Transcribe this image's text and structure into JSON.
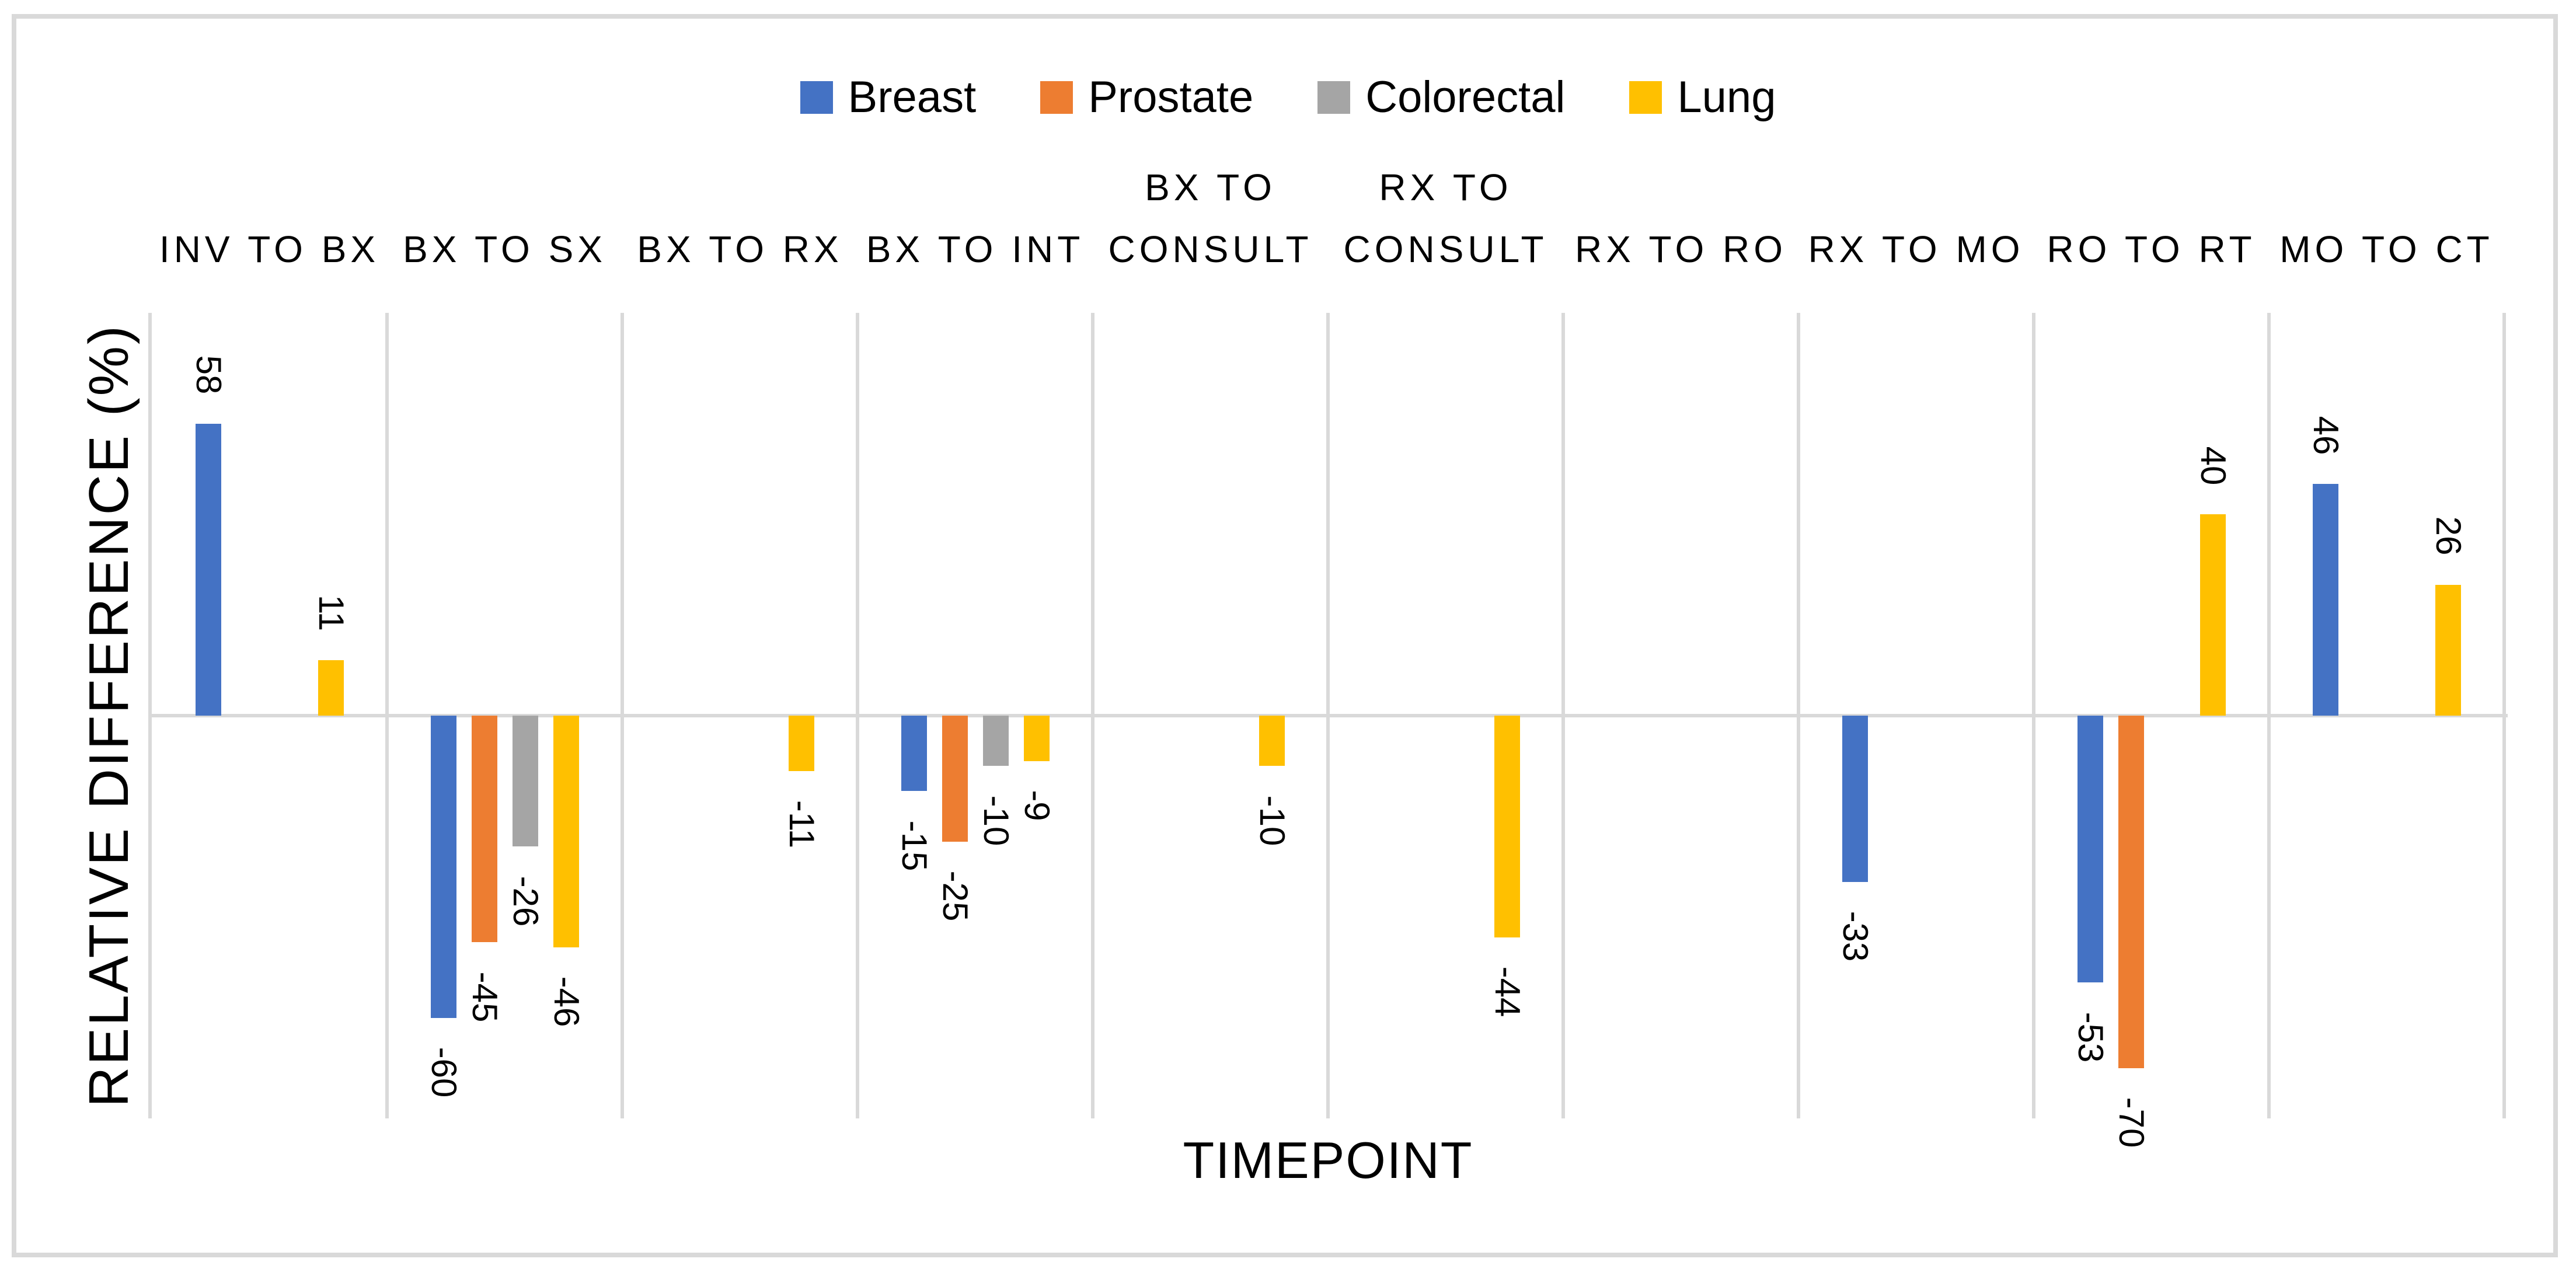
{
  "figure": {
    "background": "#FFFFFF",
    "frame_border_color": "#D9D9D9",
    "axis_line_color": "#D9D9D9",
    "text_color": "#000000"
  },
  "chart_data": {
    "type": "bar",
    "title": "",
    "xlabel": "TIMEPOINT",
    "ylabel": "RELATIVE DIFFERENCE (%)",
    "ylim": [
      -80,
      80
    ],
    "grid": "vertical category separator lines only; no horizontal gridlines; no y tick labels",
    "legend_position": "top-center",
    "value_labels": "shown at end of each bar, rotated 90 degrees",
    "categories": [
      "INV TO BX",
      "BX TO SX",
      "BX TO RX",
      "BX TO INT",
      "BX TO CONSULT",
      "RX TO CONSULT",
      "RX TO RO",
      "RX TO MO",
      "RO TO RT",
      "MO TO CT"
    ],
    "category_label_lines": [
      [
        "INV TO BX"
      ],
      [
        "BX TO SX"
      ],
      [
        "BX TO RX"
      ],
      [
        "BX TO INT"
      ],
      [
        "BX TO",
        "CONSULT"
      ],
      [
        "RX TO",
        "CONSULT"
      ],
      [
        "RX TO RO"
      ],
      [
        "RX TO MO"
      ],
      [
        "RO TO RT"
      ],
      [
        "MO TO CT"
      ]
    ],
    "series": [
      {
        "name": "Breast",
        "color": "#4472C4",
        "values": [
          58,
          -60,
          null,
          -15,
          null,
          null,
          null,
          -33,
          -53,
          46
        ]
      },
      {
        "name": "Prostate",
        "color": "#ED7D31",
        "values": [
          null,
          -45,
          null,
          -25,
          null,
          null,
          null,
          null,
          -70,
          null
        ]
      },
      {
        "name": "Colorectal",
        "color": "#A5A5A5",
        "values": [
          null,
          -26,
          null,
          -10,
          null,
          null,
          null,
          null,
          null,
          null
        ]
      },
      {
        "name": "Lung",
        "color": "#FFC000",
        "values": [
          11,
          -46,
          -11,
          -9,
          -10,
          -44,
          null,
          null,
          40,
          26
        ]
      }
    ]
  }
}
